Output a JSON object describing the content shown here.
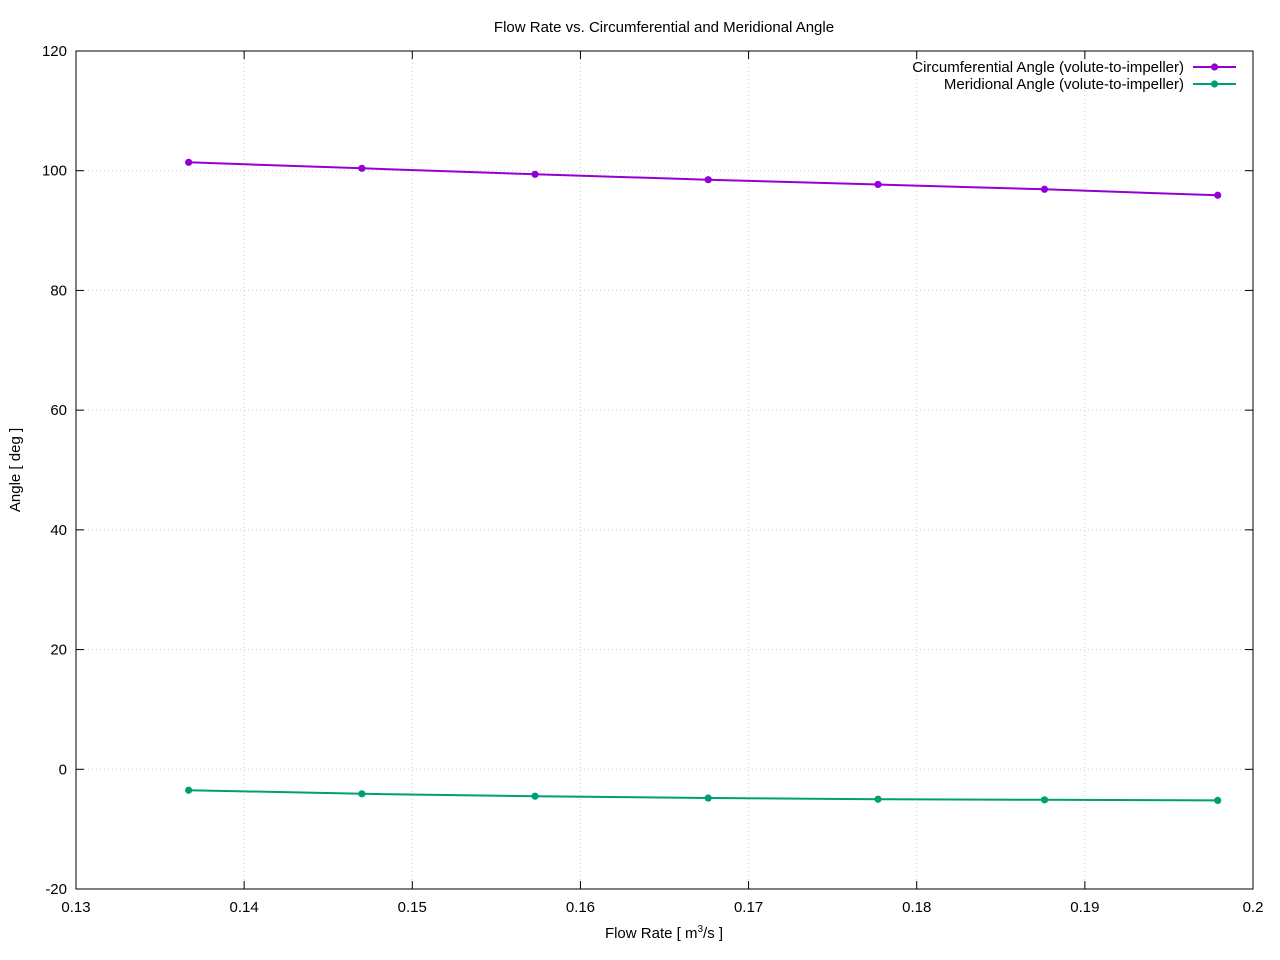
{
  "chart_data": {
    "type": "line",
    "title": "Flow Rate vs. Circumferential and Meridional Angle",
    "xlabel_main": "Flow Rate [ m",
    "xlabel_sup": "3",
    "xlabel_tail": "/s ]",
    "ylabel": "Angle [ deg ]",
    "xlim": [
      0.13,
      0.2
    ],
    "ylim": [
      -20,
      120
    ],
    "x_ticks": [
      0.13,
      0.14,
      0.15,
      0.16,
      0.17,
      0.18,
      0.19,
      0.2
    ],
    "x_tick_labels": [
      "0.13",
      "0.14",
      "0.15",
      "0.16",
      "0.17",
      "0.18",
      "0.19",
      "0.2"
    ],
    "y_ticks": [
      -20,
      0,
      20,
      40,
      60,
      80,
      100,
      120
    ],
    "y_tick_labels": [
      "-20",
      "0",
      "20",
      "40",
      "60",
      "80",
      "100",
      "120"
    ],
    "grid": true,
    "legend_position": "top-right",
    "x": [
      0.1367,
      0.147,
      0.1573,
      0.1676,
      0.1777,
      0.1876,
      0.1979
    ],
    "series": [
      {
        "name": "Circumferential Angle (volute-to-impeller)",
        "color": "#9400d3",
        "values": [
          101.4,
          100.4,
          99.4,
          98.5,
          97.7,
          96.9,
          95.9
        ]
      },
      {
        "name": "Meridional Angle (volute-to-impeller)",
        "color": "#009e73",
        "values": [
          -3.5,
          -4.1,
          -4.5,
          -4.8,
          -5.0,
          -5.1,
          -5.2
        ]
      }
    ]
  }
}
